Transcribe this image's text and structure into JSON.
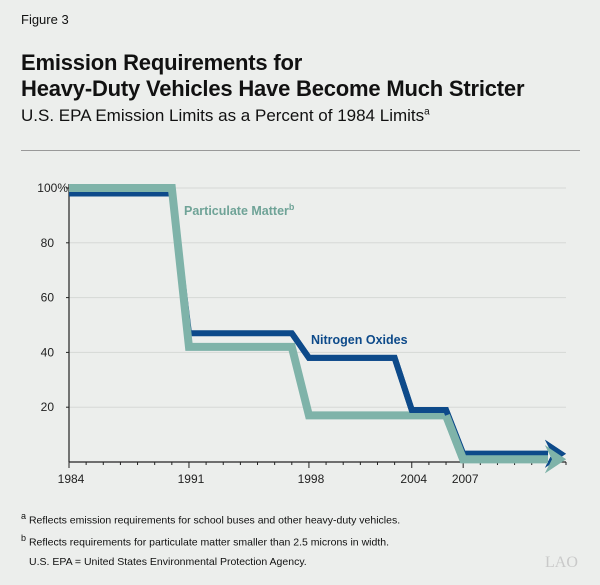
{
  "figure_label": "Figure 3",
  "title_lines": [
    "Emission Requirements for",
    "Heavy-Duty Vehicles Have Become Much Stricter"
  ],
  "subtitle": "U.S. EPA Emission Limits as a Percent of 1984 Limits",
  "subtitle_note": "a",
  "footnotes": [
    {
      "mark": "a",
      "text": "Reflects emission requirements for school buses and other heavy-duty vehicles."
    },
    {
      "mark": "b",
      "text": "Reflects requirements for particulate matter smaller than 2.5 microns in width."
    },
    {
      "mark": "",
      "text": "U.S. EPA = United States Environmental Protection Agency."
    }
  ],
  "logo": "LAO",
  "chart_data": {
    "type": "line",
    "step": true,
    "xlim": [
      1984,
      2013
    ],
    "ylim": [
      0,
      100
    ],
    "x_ticks": [
      1984,
      1991,
      1998,
      2004,
      2007
    ],
    "x_tick_labels": [
      "1984",
      "1991",
      "1998",
      "2004",
      "2007"
    ],
    "y_ticks": [
      20,
      40,
      60,
      80,
      100
    ],
    "y_tick_labels": [
      "20",
      "40",
      "60",
      "80",
      "100%"
    ],
    "grid": true,
    "series": [
      {
        "name": "Nitrogen Oxides",
        "color": "#0d4a8a",
        "x": [
          1984,
          1990,
          1991,
          1997,
          1998,
          2003,
          2004,
          2006,
          2007,
          2013
        ],
        "y": [
          98,
          98,
          47,
          47,
          38,
          38,
          19,
          19,
          3,
          3
        ]
      },
      {
        "name": "Particulate Matter",
        "name_note": "b",
        "color": "#7fb3a9",
        "x": [
          1984,
          1990,
          1991,
          1997,
          1998,
          2006,
          2007,
          2013
        ],
        "y": [
          100,
          100,
          42,
          42,
          17,
          17,
          1,
          1
        ]
      }
    ]
  }
}
